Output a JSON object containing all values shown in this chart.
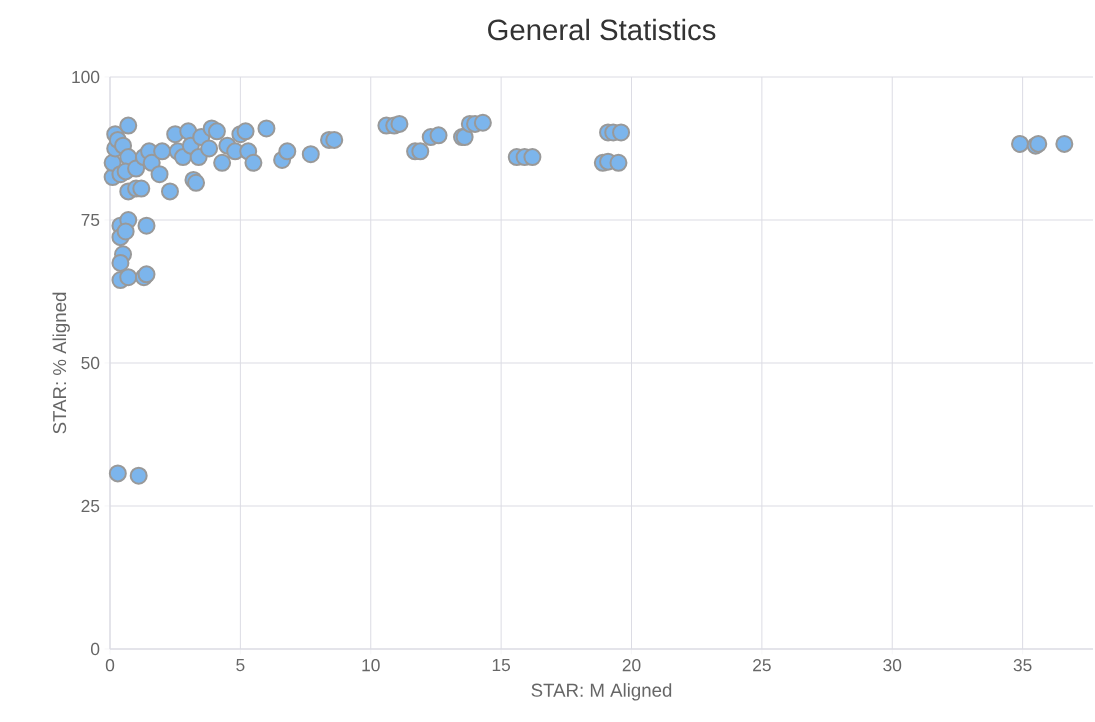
{
  "chart_data": {
    "type": "scatter",
    "title": "General Statistics",
    "xlabel": "STAR: M Aligned",
    "ylabel": "STAR: % Aligned",
    "xlim": [
      0,
      37.7
    ],
    "ylim": [
      0,
      100
    ],
    "xticks": [
      0,
      5,
      10,
      15,
      20,
      25,
      30,
      35
    ],
    "yticks": [
      0,
      25,
      50,
      75,
      100
    ],
    "grid": true,
    "marker": "circle",
    "series": [
      {
        "color": "#7cb5ec",
        "x": [
          0.1,
          0.1,
          0.2,
          0.2,
          0.3,
          0.5,
          0.7,
          0.4,
          0.7,
          0.6,
          0.7,
          1.0,
          1.2,
          1.0,
          1.3,
          1.5,
          1.6,
          1.9,
          2.0,
          2.3,
          2.5,
          2.6,
          2.8,
          3.0,
          3.1,
          3.2,
          3.3,
          3.4,
          3.5,
          3.8,
          3.9,
          4.1,
          4.3,
          4.5,
          4.8,
          5.0,
          5.2,
          5.3,
          5.5,
          6.0,
          6.6,
          6.8,
          7.7,
          8.4,
          8.6,
          0.4,
          0.7,
          1.4,
          0.4,
          0.6,
          0.5,
          0.4,
          0.4,
          0.7,
          1.3,
          1.4,
          0.3,
          1.1,
          10.6,
          10.9,
          11.1,
          11.7,
          11.9,
          12.3,
          12.6,
          13.5,
          13.6,
          13.8,
          14.0,
          14.3,
          15.6,
          15.9,
          16.2,
          18.9,
          19.1,
          19.5,
          19.1,
          19.3,
          19.6,
          34.9,
          35.5,
          35.6,
          36.6
        ],
        "values": [
          82.5,
          85,
          87.5,
          90,
          89,
          88,
          91.5,
          83,
          86,
          83.5,
          80,
          80.5,
          80.5,
          84,
          86,
          87,
          85,
          83,
          87,
          80,
          90,
          87,
          86,
          90.5,
          88,
          82,
          81.5,
          86,
          89.5,
          87.5,
          91,
          90.5,
          85,
          88,
          87,
          90,
          90.5,
          87,
          85,
          91,
          85.5,
          87,
          86.5,
          89,
          89,
          74,
          75,
          74,
          72,
          73,
          69,
          67.5,
          64.5,
          65,
          65,
          65.5,
          30.7,
          30.3,
          91.5,
          91.5,
          91.8,
          87,
          87,
          89.5,
          89.8,
          89.5,
          89.5,
          91.8,
          91.8,
          92,
          86,
          86,
          86,
          85,
          85.2,
          85,
          90.3,
          90.3,
          90.3,
          88.3,
          88,
          88.3,
          88.3
        ]
      }
    ]
  }
}
